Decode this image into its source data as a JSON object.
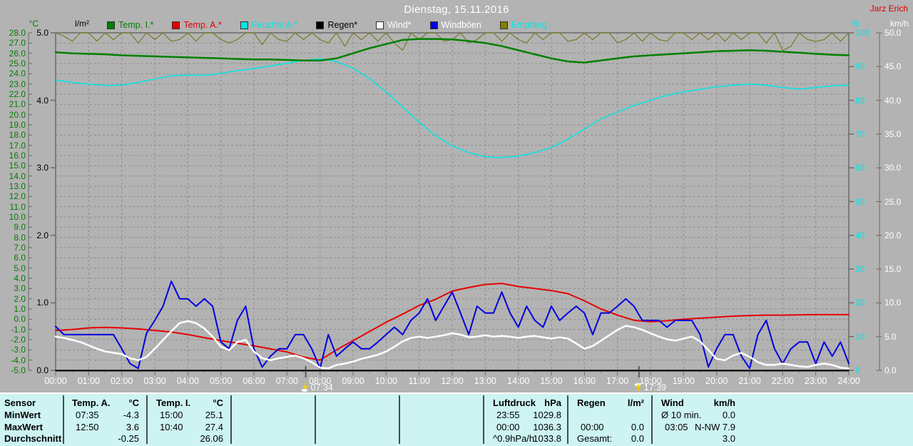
{
  "header": {
    "title": "Dienstag, 15.11.2016",
    "watermark": "Jarz Erich"
  },
  "legend": [
    {
      "label": "Temp. I.*",
      "swatch": "#008000",
      "text_color": "#008000"
    },
    {
      "label": "Temp. A.*",
      "swatch": "#e60000",
      "text_color": "#e60000"
    },
    {
      "label": "Feuchte A.*",
      "swatch": "#00e6e6",
      "text_color": "#00e6e6"
    },
    {
      "label": "Regen*",
      "swatch": "#000000",
      "text_color": "#000000"
    },
    {
      "label": "Wind*",
      "swatch": "#ffffff",
      "text_color": "#ffffff"
    },
    {
      "label": "Windböen",
      "swatch": "#0000e0",
      "text_color": "#ffffff"
    },
    {
      "label": "Empfang",
      "swatch": "#808000",
      "text_color": "#00e6e6"
    }
  ],
  "markers": {
    "sunrise": {
      "label": "07:34",
      "hour": 7.567
    },
    "sunset": {
      "label": "17:39",
      "hour": 17.65
    }
  },
  "chart_data": {
    "type": "line",
    "title": "Dienstag, 15.11.2016",
    "grid": true,
    "x_axis": {
      "unit": "hour",
      "min": 0,
      "max": 24,
      "tick_labels": [
        "00:00",
        "01:00",
        "02:00",
        "03:00",
        "04:00",
        "05:00",
        "06:00",
        "07:00",
        "08:00",
        "09:00",
        "10:00",
        "11:00",
        "12:00",
        "13:00",
        "14:00",
        "15:00",
        "16:00",
        "17:00",
        "18:00",
        "19:00",
        "20:00",
        "21:00",
        "22:00",
        "23:00",
        "24:00"
      ]
    },
    "y_axes": {
      "temp": {
        "label": "°C",
        "min": -5,
        "max": 28,
        "color": "#007d00",
        "tick_labels": [
          "28.0",
          "27.0",
          "26.0",
          "25.0",
          "24.0",
          "23.0",
          "22.0",
          "21.0",
          "20.0",
          "19.0",
          "18.0",
          "17.0",
          "16.0",
          "15.0",
          "14.0",
          "13.0",
          "12.0",
          "11.0",
          "10.0",
          "9.0",
          "8.0",
          "7.0",
          "6.0",
          "5.0",
          "4.0",
          "3.0",
          "2.0",
          "1.0",
          "0.0",
          "-1.0",
          "-2.0",
          "-3.0",
          "-4.0",
          "-5.0"
        ]
      },
      "rain": {
        "label": "l/m²",
        "min": 0,
        "max": 5,
        "color": "#000000",
        "tick_labels": [
          "5.0",
          "4.0",
          "3.0",
          "2.0",
          "1.0",
          "0.0"
        ]
      },
      "humidity": {
        "label": "%",
        "min": 0,
        "max": 100,
        "color": "#00e4e4",
        "tick_labels": [
          "100",
          "90",
          "80",
          "70",
          "60",
          "50",
          "40",
          "30",
          "20",
          "10",
          "0"
        ]
      },
      "wind": {
        "label": "km/h",
        "min": 0,
        "max": 50,
        "color": "#ffffff",
        "tick_labels": [
          "50.0",
          "45.0",
          "40.0",
          "35.0",
          "30.0",
          "25.0",
          "20.0",
          "15.0",
          "10.0",
          "5.0",
          "0.0"
        ]
      }
    },
    "series": [
      {
        "name": "Empfang",
        "axis": "humidity",
        "color": "#7a7a28",
        "width": 1.2,
        "interval_min": 15,
        "values": [
          100,
          99,
          97.5,
          100,
          100,
          97.5,
          100,
          98,
          100,
          100,
          97,
          100,
          98,
          100,
          97.5,
          98,
          100,
          97.5,
          100,
          100,
          98,
          97,
          98,
          100,
          100,
          96.5,
          100,
          98,
          97.5,
          100,
          98,
          100,
          98,
          97,
          100,
          96,
          100,
          98,
          100,
          97.5,
          100,
          97,
          94.8,
          100,
          98,
          100,
          100,
          97.5,
          98,
          100,
          97,
          98,
          100,
          100,
          97.5,
          100,
          98,
          97,
          100,
          98,
          100,
          100,
          97.5,
          98,
          100,
          98,
          100,
          100,
          97,
          98,
          100,
          97.5,
          100,
          98,
          97.5,
          100,
          100,
          98,
          100,
          98,
          100,
          97.5,
          100,
          98,
          100,
          100,
          97,
          100,
          94.8,
          96,
          100,
          98,
          97.5,
          98,
          100,
          97.5,
          100
        ]
      },
      {
        "name": "Feuchte A.",
        "axis": "humidity",
        "color": "#00e6e6",
        "width": 1.5,
        "interval_min": 30,
        "values": [
          86,
          85.3,
          84.8,
          84.4,
          84.5,
          85.3,
          86.3,
          87.3,
          87.5,
          87.4,
          88.0,
          88.8,
          89.4,
          90.2,
          91.0,
          91.8,
          92.3,
          91.5,
          89.5,
          86.5,
          82.5,
          78.0,
          73.5,
          69.5,
          66.5,
          64.5,
          63.3,
          63.0,
          63.5,
          64.5,
          66.0,
          68.5,
          71.5,
          74.5,
          76.5,
          78.5,
          80.0,
          81.5,
          82.5,
          83.3,
          84.0,
          84.5,
          84.8,
          84.5,
          83.8,
          83.3,
          83.8,
          84.3,
          84.5
        ]
      },
      {
        "name": "Temp. I.",
        "axis": "temp",
        "color": "#008000",
        "width": 2.5,
        "interval_min": 30,
        "values": [
          26.1,
          26.0,
          25.95,
          25.9,
          25.8,
          25.75,
          25.7,
          25.65,
          25.6,
          25.55,
          25.5,
          25.45,
          25.4,
          25.4,
          25.35,
          25.3,
          25.3,
          25.5,
          26.0,
          26.5,
          26.9,
          27.3,
          27.4,
          27.4,
          27.35,
          27.2,
          27.0,
          26.7,
          26.3,
          25.9,
          25.5,
          25.2,
          25.1,
          25.3,
          25.5,
          25.7,
          25.8,
          25.9,
          26.0,
          26.1,
          26.2,
          26.25,
          26.3,
          26.25,
          26.15,
          26.05,
          25.95,
          25.85,
          25.8
        ]
      },
      {
        "name": "Regen",
        "axis": "rain",
        "color": "#000000",
        "width": 1.5,
        "interval_min": 1440,
        "values": [
          0,
          0
        ]
      },
      {
        "name": "Temp. A.",
        "axis": "temp",
        "color": "#e60000",
        "width": 2,
        "interval_min": 30,
        "values": [
          -1.1,
          -1.0,
          -0.85,
          -0.8,
          -0.85,
          -0.95,
          -1.1,
          -1.25,
          -1.5,
          -1.8,
          -2.1,
          -2.35,
          -2.6,
          -2.9,
          -3.2,
          -3.7,
          -4.0,
          -3.0,
          -2.1,
          -1.2,
          -0.3,
          0.5,
          1.35,
          1.95,
          2.75,
          3.1,
          3.4,
          3.5,
          3.2,
          3.0,
          2.8,
          2.5,
          1.8,
          1.0,
          0.4,
          -0.1,
          -0.25,
          -0.15,
          0.0,
          0.1,
          0.2,
          0.3,
          0.35,
          0.4,
          0.4,
          0.42,
          0.45,
          0.45,
          0.45
        ]
      },
      {
        "name": "Windböen",
        "axis": "wind",
        "color": "#0000e0",
        "width": 2,
        "interval_min": 15,
        "values": [
          6.5,
          5.3,
          5.3,
          5.3,
          5.3,
          5.3,
          5.3,
          5.3,
          3.2,
          1.0,
          0.3,
          5.5,
          7.4,
          9.5,
          13.2,
          10.6,
          10.6,
          9.5,
          10.6,
          9.5,
          4.2,
          3.2,
          7.4,
          9.5,
          3.2,
          0.5,
          2.1,
          3.2,
          3.2,
          5.3,
          5.3,
          3.2,
          0.3,
          5.3,
          2.1,
          3.2,
          4.2,
          3.2,
          3.2,
          4.2,
          5.3,
          6.4,
          5.3,
          7.4,
          8.5,
          10.6,
          7.4,
          9.5,
          11.6,
          8.5,
          5.3,
          9.5,
          8.5,
          8.5,
          11.6,
          8.5,
          6.4,
          9.5,
          7.4,
          6.4,
          9.5,
          7.4,
          8.5,
          9.5,
          8.5,
          5.3,
          8.5,
          8.5,
          9.5,
          10.6,
          9.5,
          7.4,
          7.4,
          7.4,
          6.4,
          7.4,
          7.4,
          7.4,
          5.3,
          0.5,
          3.2,
          5.3,
          5.3,
          2.1,
          0.3,
          5.3,
          7.4,
          3.2,
          1.0,
          3.2,
          4.2,
          4.2,
          1.0,
          4.2,
          2.1,
          4.2,
          1.0
        ]
      },
      {
        "name": "Wind",
        "axis": "wind",
        "color": "#ffffff",
        "width": 2.5,
        "interval_min": 15,
        "values": [
          5.0,
          4.8,
          4.5,
          4.2,
          3.7,
          3.2,
          2.8,
          2.6,
          2.4,
          1.8,
          1.5,
          2.0,
          3.2,
          4.5,
          5.8,
          7.0,
          7.3,
          7.0,
          6.2,
          5.0,
          3.5,
          3.0,
          4.2,
          4.5,
          2.8,
          1.8,
          1.5,
          1.8,
          2.0,
          2.2,
          1.8,
          1.2,
          0.4,
          0.3,
          0.8,
          1.0,
          1.3,
          1.7,
          2.0,
          2.3,
          2.8,
          3.5,
          4.3,
          4.8,
          5.0,
          4.8,
          5.0,
          5.2,
          5.5,
          5.3,
          4.9,
          5.0,
          5.2,
          5.0,
          5.1,
          5.0,
          4.8,
          5.0,
          5.1,
          4.9,
          4.7,
          4.9,
          4.7,
          4.0,
          3.2,
          3.6,
          4.4,
          5.2,
          6.0,
          6.6,
          6.4,
          6.0,
          5.5,
          5.0,
          4.6,
          4.4,
          4.7,
          5.0,
          4.3,
          3.0,
          1.7,
          1.5,
          2.2,
          2.6,
          2.0,
          1.2,
          0.8,
          0.8,
          1.0,
          0.8,
          0.6,
          0.5,
          0.8,
          1.0,
          0.8,
          0.4,
          0.3
        ]
      }
    ]
  },
  "table": {
    "row_labels": [
      "Sensor",
      "MinWert",
      "MaxWert",
      "Durchschnitt"
    ],
    "cols": [
      {
        "name": "Temp. A.",
        "unit": "°C",
        "min": [
          "07:35",
          "-4.3"
        ],
        "max": [
          "12:50",
          "3.6"
        ],
        "avg": [
          "",
          "-0.25"
        ]
      },
      {
        "name": "Temp. I.",
        "unit": "°C",
        "min": [
          "15:00",
          "25.1"
        ],
        "max": [
          "10:40",
          "27.4"
        ],
        "avg": [
          "",
          "26.06"
        ]
      },
      {
        "name": "Luftdruck",
        "unit": "hPa",
        "min": [
          "23:55",
          "1029.8"
        ],
        "max": [
          "00:00",
          "1036.3"
        ],
        "avg": [
          "^0.9hPa/h",
          "1033.8"
        ]
      },
      {
        "name": "Regen",
        "unit": "l/m²",
        "min": [
          "",
          ""
        ],
        "max": [
          "00:00",
          "0.0"
        ],
        "avg": [
          "Gesamt:",
          "0.0"
        ]
      },
      {
        "name": "Wind",
        "unit": "km/h",
        "min": [
          "Ø 10 min.",
          "0.0"
        ],
        "max": [
          "03:05",
          "N-NW 7.9"
        ],
        "avg": [
          "",
          "3.0"
        ]
      }
    ]
  }
}
